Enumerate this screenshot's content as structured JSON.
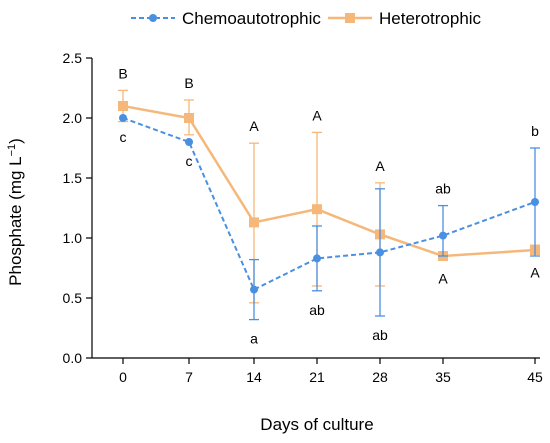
{
  "chart_data": {
    "type": "line",
    "xlabel": "Days of culture",
    "ylabel_main": "Phosphate (mg L",
    "ylabel_exp": "−1",
    "ylabel_close": ")",
    "x": [
      0,
      7,
      14,
      21,
      28,
      35,
      45
    ],
    "x_tick_labels": [
      "0",
      "7",
      "14",
      "21",
      "28",
      "35",
      "45"
    ],
    "ylim": [
      0,
      2.5
    ],
    "y_ticks": [
      0.0,
      0.5,
      1.0,
      1.5,
      2.0,
      2.5
    ],
    "y_tick_labels": [
      "0.0",
      "0.5",
      "1.0",
      "1.5",
      "2.0",
      "2.5"
    ],
    "grid": false,
    "legend_position": "top",
    "series": [
      {
        "name": "Chemoautotrophic",
        "color": "#4a90e2",
        "line_style": "dashed",
        "marker": "circle",
        "values": [
          2.0,
          1.8,
          0.57,
          0.83,
          0.88,
          1.02,
          1.3
        ],
        "err_low": [
          2.0,
          1.8,
          0.32,
          0.56,
          0.35,
          0.85,
          0.85
        ],
        "err_high": [
          2.0,
          1.8,
          0.82,
          1.1,
          1.41,
          1.27,
          1.75
        ],
        "sig_labels": [
          "c",
          "c",
          "a",
          "ab",
          "ab",
          "ab",
          "b"
        ],
        "sig_pos": [
          "below",
          "below",
          "below",
          "below",
          "below",
          "above",
          "above"
        ]
      },
      {
        "name": "Heterotrophic",
        "color": "#f5b87a",
        "line_style": "solid",
        "marker": "square",
        "values": [
          2.1,
          2.0,
          1.13,
          1.24,
          1.03,
          0.85,
          0.9
        ],
        "err_low": [
          1.97,
          1.86,
          0.46,
          0.6,
          0.6,
          0.82,
          0.87
        ],
        "err_high": [
          2.23,
          2.15,
          1.79,
          1.88,
          1.46,
          0.88,
          0.94
        ],
        "sig_labels": [
          "B",
          "B",
          "A",
          "A",
          "A",
          "A",
          "A"
        ],
        "sig_pos": [
          "above",
          "above",
          "above",
          "above",
          "above",
          "below",
          "below"
        ]
      }
    ]
  }
}
